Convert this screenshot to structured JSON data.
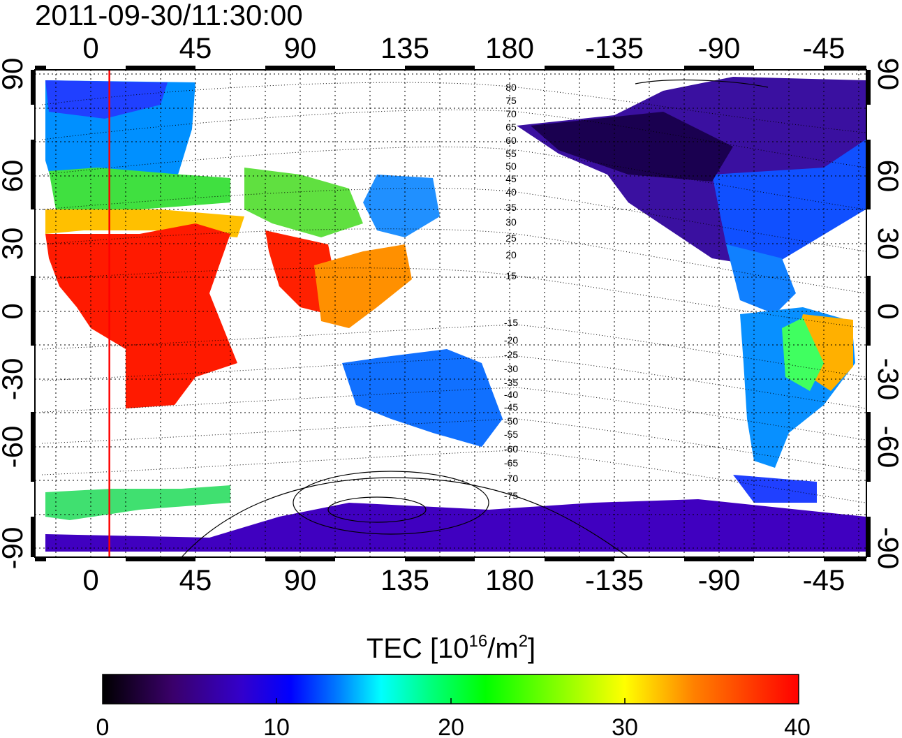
{
  "timestamp": "2011-09-30/11:30:00",
  "map": {
    "lon_ticks_top": [
      "0",
      "45",
      "90",
      "135",
      "180",
      "-135",
      "-90",
      "-45"
    ],
    "lon_ticks_bottom": [
      "0",
      "45",
      "90",
      "135",
      "180",
      "-135",
      "-90",
      "-45"
    ],
    "lat_ticks_left": [
      "90",
      "60",
      "30",
      "0",
      "-30",
      "-60",
      "-90"
    ],
    "lat_ticks_right": [
      "90",
      "60",
      "30",
      "0",
      "-30",
      "-60",
      "-90"
    ],
    "contour_labels": [
      "80",
      "75",
      "70",
      "65",
      "60",
      "55",
      "50",
      "45",
      "40",
      "35",
      "30",
      "25",
      "20",
      "15",
      "-15",
      "-20",
      "-25",
      "-30",
      "-35",
      "-40",
      "-45",
      "-50",
      "-55",
      "-60",
      "-65",
      "-70",
      "-75"
    ],
    "marker_line_color": "#ff0000",
    "terminator_longitude": 8
  },
  "colorbar": {
    "title_prefix": "TEC  [10",
    "title_exp1": "16",
    "title_mid": "/m",
    "title_exp2": "2",
    "title_suffix": "]",
    "tick_labels": [
      "0",
      "10",
      "20",
      "30",
      "40"
    ],
    "min": 0,
    "max": 40,
    "colors": [
      "#000000",
      "#3a006a",
      "#3300cc",
      "#0000ff",
      "#0080ff",
      "#00ffff",
      "#00ff80",
      "#00ff00",
      "#80ff00",
      "#ffff00",
      "#ff8000",
      "#ff0000"
    ]
  }
}
